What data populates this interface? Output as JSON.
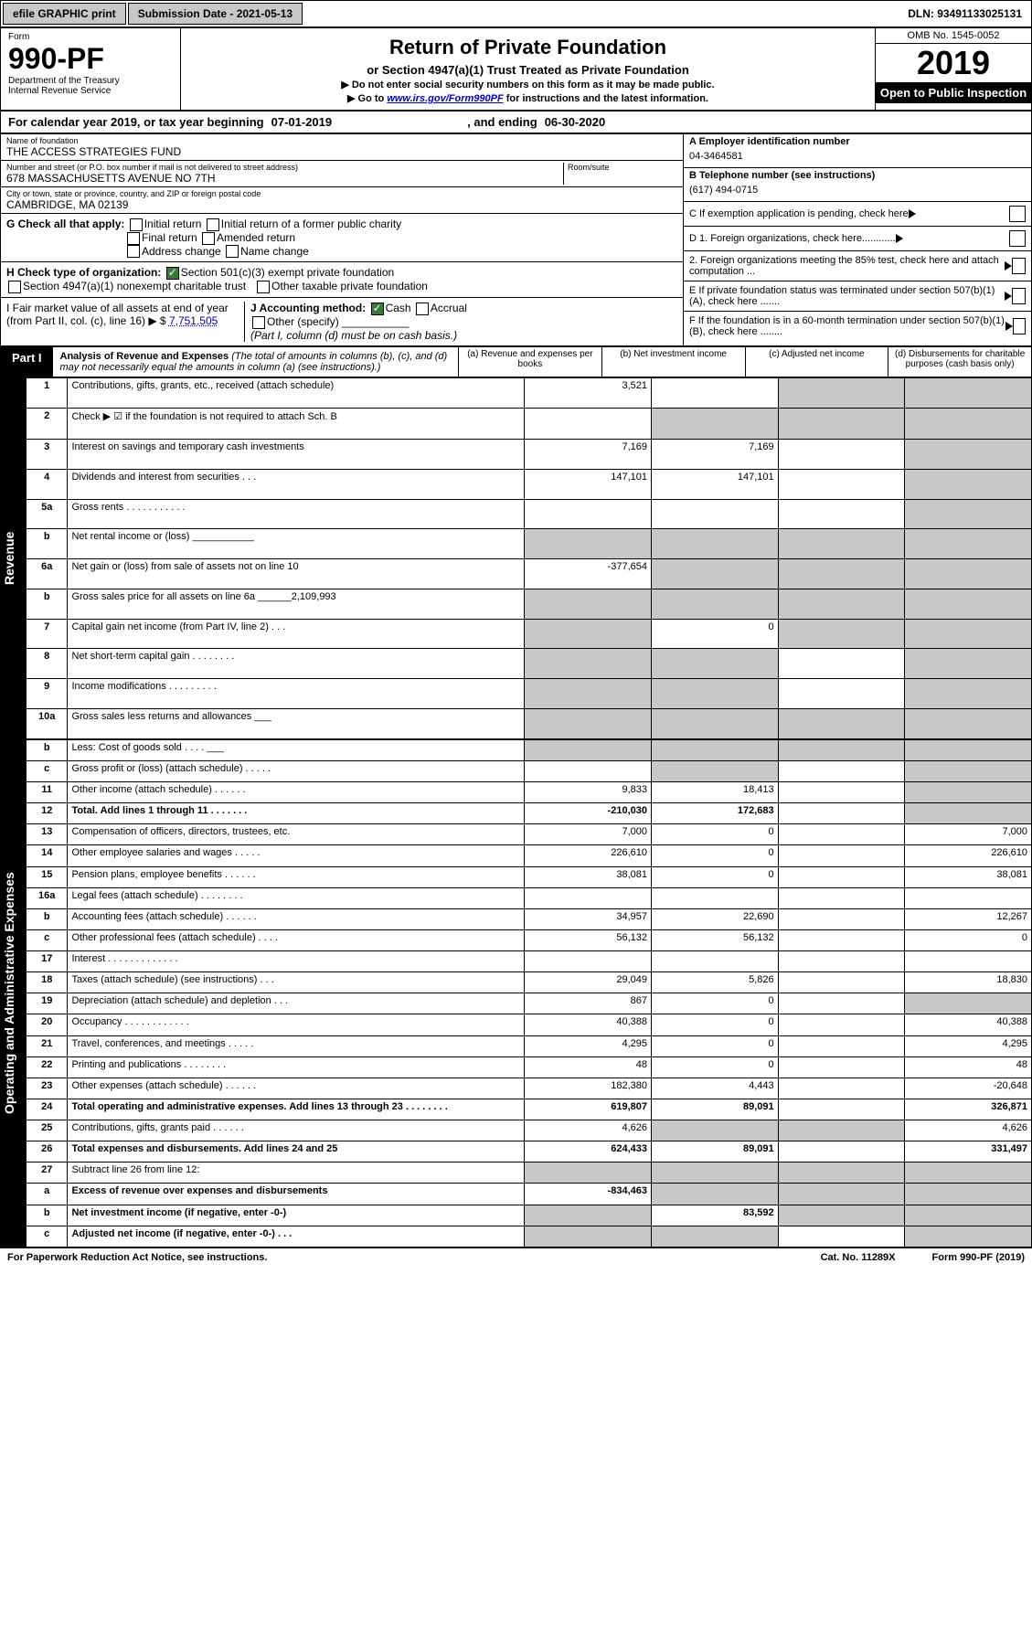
{
  "top": {
    "efile": "efile GRAPHIC print",
    "submission": "Submission Date - 2021-05-13",
    "dln": "DLN: 93491133025131"
  },
  "header": {
    "form": "Form",
    "number": "990-PF",
    "dept": "Department of the Treasury\nInternal Revenue Service",
    "title": "Return of Private Foundation",
    "subtitle": "or Section 4947(a)(1) Trust Treated as Private Foundation",
    "note1": "▶ Do not enter social security numbers on this form as it may be made public.",
    "note2_pre": "▶ Go to ",
    "note2_link": "www.irs.gov/Form990PF",
    "note2_post": " for instructions and the latest information.",
    "omb": "OMB No. 1545-0052",
    "year": "2019",
    "open": "Open to Public Inspection"
  },
  "cal": {
    "pre": "For calendar year 2019, or tax year beginning ",
    "begin": "07-01-2019",
    "mid": ", and ending ",
    "end": "06-30-2020"
  },
  "info": {
    "name_label": "Name of foundation",
    "name": "THE ACCESS STRATEGIES FUND",
    "addr_label": "Number and street (or P.O. box number if mail is not delivered to street address)",
    "addr": "678 MASSACHUSETTS AVENUE NO 7TH",
    "room_label": "Room/suite",
    "city_label": "City or town, state or province, country, and ZIP or foreign postal code",
    "city": "CAMBRIDGE, MA  02139",
    "ein_label": "A Employer identification number",
    "ein": "04-3464581",
    "phone_label": "B Telephone number (see instructions)",
    "phone": "(617) 494-0715",
    "c": "C If exemption application is pending, check here",
    "d1": "D 1. Foreign organizations, check here............",
    "d2": "2. Foreign organizations meeting the 85% test, check here and attach computation ...",
    "e": "E If private foundation status was terminated under section 507(b)(1)(A), check here .......",
    "f": "F If the foundation is in a 60-month termination under section 507(b)(1)(B), check here ........"
  },
  "checks": {
    "g": "G Check all that apply:",
    "g_items": [
      "Initial return",
      "Initial return of a former public charity",
      "Final return",
      "Amended return",
      "Address change",
      "Name change"
    ],
    "h": "H Check type of organization:",
    "h1": "Section 501(c)(3) exempt private foundation",
    "h2": "Section 4947(a)(1) nonexempt charitable trust",
    "h3": "Other taxable private foundation",
    "i_pre": "I Fair market value of all assets at end of year (from Part II, col. (c), line 16) ▶ $ ",
    "i_val": "7,751,505",
    "j": "J Accounting method:",
    "j_cash": "Cash",
    "j_acc": "Accrual",
    "j_other": "Other (specify)",
    "j_note": "(Part I, column (d) must be on cash basis.)"
  },
  "part1": {
    "label": "Part I",
    "title": "Analysis of Revenue and Expenses",
    "desc": "(The total of amounts in columns (b), (c), and (d) may not necessarily equal the amounts in column (a) (see instructions).)",
    "cols": {
      "a": "(a) Revenue and expenses per books",
      "b": "(b) Net investment income",
      "c": "(c) Adjusted net income",
      "d": "(d) Disbursements for charitable purposes (cash basis only)"
    }
  },
  "revenue_label": "Revenue",
  "expenses_label": "Operating and Administrative Expenses",
  "rows": [
    {
      "n": "1",
      "desc": "Contributions, gifts, grants, etc., received (attach schedule)",
      "a": "3,521",
      "b": "",
      "c": "g",
      "d": "g"
    },
    {
      "n": "2",
      "desc": "Check ▶ ☑ if the foundation is not required to attach Sch. B",
      "a": "",
      "b": "g",
      "c": "g",
      "d": "g"
    },
    {
      "n": "3",
      "desc": "Interest on savings and temporary cash investments",
      "a": "7,169",
      "b": "7,169",
      "c": "",
      "d": "g"
    },
    {
      "n": "4",
      "desc": "Dividends and interest from securities  .  .  .",
      "a": "147,101",
      "b": "147,101",
      "c": "",
      "d": "g"
    },
    {
      "n": "5a",
      "desc": "Gross rents  .  .  .  .  .  .  .  .  .  .  .",
      "a": "",
      "b": "",
      "c": "",
      "d": "g"
    },
    {
      "n": "b",
      "desc": "Net rental income or (loss)  ___________",
      "a": "g",
      "b": "g",
      "c": "g",
      "d": "g"
    },
    {
      "n": "6a",
      "desc": "Net gain or (loss) from sale of assets not on line 10",
      "a": "-377,654",
      "b": "g",
      "c": "g",
      "d": "g"
    },
    {
      "n": "b",
      "desc": "Gross sales price for all assets on line 6a ______2,109,993",
      "a": "g",
      "b": "g",
      "c": "g",
      "d": "g"
    },
    {
      "n": "7",
      "desc": "Capital gain net income (from Part IV, line 2)  .  .  .",
      "a": "g",
      "b": "0",
      "c": "g",
      "d": "g"
    },
    {
      "n": "8",
      "desc": "Net short-term capital gain  .  .  .  .  .  .  .  .",
      "a": "g",
      "b": "g",
      "c": "",
      "d": "g"
    },
    {
      "n": "9",
      "desc": "Income modifications  .  .  .  .  .  .  .  .  .",
      "a": "g",
      "b": "g",
      "c": "",
      "d": "g"
    },
    {
      "n": "10a",
      "desc": "Gross sales less returns and allowances  ___",
      "a": "g",
      "b": "g",
      "c": "g",
      "d": "g"
    },
    {
      "n": "b",
      "desc": "Less: Cost of goods sold  .  .  .  .  ___",
      "a": "g",
      "b": "g",
      "c": "g",
      "d": "g"
    },
    {
      "n": "c",
      "desc": "Gross profit or (loss) (attach schedule)  .  .  .  .  .",
      "a": "",
      "b": "g",
      "c": "",
      "d": "g"
    },
    {
      "n": "11",
      "desc": "Other income (attach schedule)  .  .  .  .  .  .",
      "a": "9,833",
      "b": "18,413",
      "c": "",
      "d": "g"
    },
    {
      "n": "12",
      "desc": "Total. Add lines 1 through 11  .  .  .  .  .  .  .",
      "a": "-210,030",
      "b": "172,683",
      "c": "",
      "d": "g",
      "bold": true
    },
    {
      "n": "13",
      "desc": "Compensation of officers, directors, trustees, etc.",
      "a": "7,000",
      "b": "0",
      "c": "",
      "d": "7,000"
    },
    {
      "n": "14",
      "desc": "Other employee salaries and wages  .  .  .  .  .",
      "a": "226,610",
      "b": "0",
      "c": "",
      "d": "226,610"
    },
    {
      "n": "15",
      "desc": "Pension plans, employee benefits  .  .  .  .  .  .",
      "a": "38,081",
      "b": "0",
      "c": "",
      "d": "38,081"
    },
    {
      "n": "16a",
      "desc": "Legal fees (attach schedule)  .  .  .  .  .  .  .  .",
      "a": "",
      "b": "",
      "c": "",
      "d": ""
    },
    {
      "n": "b",
      "desc": "Accounting fees (attach schedule)  .  .  .  .  .  .",
      "a": "34,957",
      "b": "22,690",
      "c": "",
      "d": "12,267"
    },
    {
      "n": "c",
      "desc": "Other professional fees (attach schedule)  .  .  .  .",
      "a": "56,132",
      "b": "56,132",
      "c": "",
      "d": "0"
    },
    {
      "n": "17",
      "desc": "Interest  .  .  .  .  .  .  .  .  .  .  .  .  .",
      "a": "",
      "b": "",
      "c": "",
      "d": ""
    },
    {
      "n": "18",
      "desc": "Taxes (attach schedule) (see instructions)  .  .  .",
      "a": "29,049",
      "b": "5,826",
      "c": "",
      "d": "18,830"
    },
    {
      "n": "19",
      "desc": "Depreciation (attach schedule) and depletion  .  .  .",
      "a": "867",
      "b": "0",
      "c": "",
      "d": "g"
    },
    {
      "n": "20",
      "desc": "Occupancy  .  .  .  .  .  .  .  .  .  .  .  .",
      "a": "40,388",
      "b": "0",
      "c": "",
      "d": "40,388"
    },
    {
      "n": "21",
      "desc": "Travel, conferences, and meetings  .  .  .  .  .",
      "a": "4,295",
      "b": "0",
      "c": "",
      "d": "4,295"
    },
    {
      "n": "22",
      "desc": "Printing and publications  .  .  .  .  .  .  .  .",
      "a": "48",
      "b": "0",
      "c": "",
      "d": "48"
    },
    {
      "n": "23",
      "desc": "Other expenses (attach schedule)  .  .  .  .  .  .",
      "a": "182,380",
      "b": "4,443",
      "c": "",
      "d": "-20,648"
    },
    {
      "n": "24",
      "desc": "Total operating and administrative expenses. Add lines 13 through 23  .  .  .  .  .  .  .  .",
      "a": "619,807",
      "b": "89,091",
      "c": "",
      "d": "326,871",
      "bold": true
    },
    {
      "n": "25",
      "desc": "Contributions, gifts, grants paid  .  .  .  .  .  .",
      "a": "4,626",
      "b": "g",
      "c": "g",
      "d": "4,626"
    },
    {
      "n": "26",
      "desc": "Total expenses and disbursements. Add lines 24 and 25",
      "a": "624,433",
      "b": "89,091",
      "c": "",
      "d": "331,497",
      "bold": true
    },
    {
      "n": "27",
      "desc": "Subtract line 26 from line 12:",
      "a": "g",
      "b": "g",
      "c": "g",
      "d": "g"
    },
    {
      "n": "a",
      "desc": "Excess of revenue over expenses and disbursements",
      "a": "-834,463",
      "b": "g",
      "c": "g",
      "d": "g",
      "bold": true
    },
    {
      "n": "b",
      "desc": "Net investment income (if negative, enter -0-)",
      "a": "g",
      "b": "83,592",
      "c": "g",
      "d": "g",
      "bold": true
    },
    {
      "n": "c",
      "desc": "Adjusted net income (if negative, enter -0-)  .  .  .",
      "a": "g",
      "b": "g",
      "c": "",
      "d": "g",
      "bold": true
    }
  ],
  "footer": {
    "left": "For Paperwork Reduction Act Notice, see instructions.",
    "mid": "Cat. No. 11289X",
    "right": "Form 990-PF (2019)"
  }
}
